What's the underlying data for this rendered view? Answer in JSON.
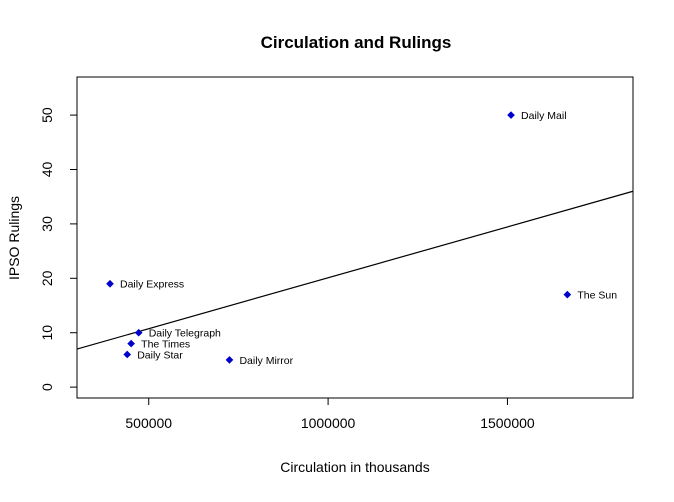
{
  "chart_data": {
    "type": "scatter",
    "title": "Circulation and Rulings",
    "xlabel": "Circulation in thousands",
    "ylabel": "IPSO Rulings",
    "xlim": [
      300000,
      1850000
    ],
    "ylim": [
      -2,
      57
    ],
    "x_ticks": [
      500000,
      1000000,
      1500000
    ],
    "x_tick_labels": [
      "500000",
      "1000000",
      "1500000"
    ],
    "y_ticks": [
      0,
      10,
      20,
      30,
      40,
      50
    ],
    "y_tick_labels": [
      "0",
      "10",
      "20",
      "30",
      "40",
      "50"
    ],
    "grid": false,
    "point_color": "#0000cc",
    "line_color": "#000000",
    "points": [
      {
        "label": "Daily Mail",
        "x": 1510000,
        "y": 50
      },
      {
        "label": "Daily Express",
        "x": 392000,
        "y": 19
      },
      {
        "label": "The Sun",
        "x": 1667000,
        "y": 17
      },
      {
        "label": "Daily Telegraph",
        "x": 472000,
        "y": 10
      },
      {
        "label": "The Times",
        "x": 451000,
        "y": 8
      },
      {
        "label": "Daily Star",
        "x": 440000,
        "y": 6
      },
      {
        "label": "Daily Mirror",
        "x": 725000,
        "y": 5
      }
    ],
    "regression_line": {
      "x": [
        300000,
        1850000
      ],
      "y": [
        7,
        36
      ]
    }
  }
}
